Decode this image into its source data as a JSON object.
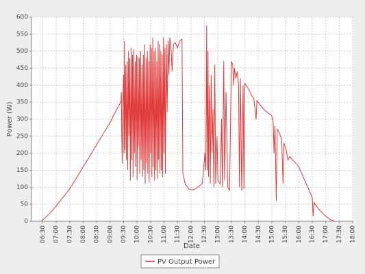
{
  "chart_data": {
    "type": "line",
    "xlabel": "Date",
    "ylabel": "Power (W)",
    "xlim": [
      "06:05",
      "18:00"
    ],
    "xticks": [
      "06:30",
      "07:00",
      "07:30",
      "08:00",
      "08:30",
      "09:00",
      "09:30",
      "10:00",
      "10:30",
      "11:00",
      "11:30",
      "12:00",
      "12:30",
      "13:00",
      "13:30",
      "14:00",
      "14:30",
      "15:00",
      "15:30",
      "16:00",
      "16:30",
      "17:00",
      "17:30",
      "18:00"
    ],
    "ylim": [
      0,
      600
    ],
    "yticks": [
      0,
      50,
      100,
      150,
      200,
      250,
      300,
      350,
      400,
      450,
      500,
      550,
      600
    ],
    "grid": true,
    "legend": "bottom",
    "series": [
      {
        "name": "PV Output Power",
        "color": "#e03a3a",
        "x": [
          "06:27",
          "06:45",
          "07:00",
          "07:15",
          "07:30",
          "07:45",
          "08:00",
          "08:15",
          "08:30",
          "08:45",
          "09:00",
          "09:15",
          "09:24",
          "09:25",
          "09:26",
          "09:27",
          "09:28",
          "09:30",
          "09:31",
          "09:32",
          "09:33",
          "09:35",
          "09:36",
          "09:38",
          "09:39",
          "09:41",
          "09:42",
          "09:44",
          "09:45",
          "09:47",
          "09:48",
          "09:50",
          "09:51",
          "09:53",
          "09:54",
          "09:56",
          "09:57",
          "09:59",
          "10:00",
          "10:02",
          "10:03",
          "10:05",
          "10:06",
          "10:08",
          "10:09",
          "10:11",
          "10:12",
          "10:14",
          "10:15",
          "10:17",
          "10:18",
          "10:20",
          "10:21",
          "10:23",
          "10:24",
          "10:26",
          "10:27",
          "10:29",
          "10:30",
          "10:32",
          "10:33",
          "10:35",
          "10:36",
          "10:38",
          "10:39",
          "10:41",
          "10:42",
          "10:44",
          "10:45",
          "10:47",
          "10:48",
          "10:50",
          "10:51",
          "10:53",
          "10:54",
          "10:56",
          "10:57",
          "10:59",
          "11:00",
          "11:02",
          "11:03",
          "11:05",
          "11:07",
          "11:09",
          "11:11",
          "11:13",
          "11:16",
          "11:18",
          "11:21",
          "11:25",
          "11:30",
          "11:35",
          "11:40",
          "11:42",
          "11:47",
          "11:55",
          "12:05",
          "12:15",
          "12:25",
          "12:28",
          "12:31",
          "12:33",
          "12:35",
          "12:36",
          "12:38",
          "12:39",
          "12:41",
          "12:43",
          "12:45",
          "12:47",
          "12:49",
          "12:51",
          "12:53",
          "12:55",
          "12:58",
          "13:00",
          "13:05",
          "13:08",
          "13:10",
          "13:13",
          "13:15",
          "13:18",
          "13:22",
          "13:26",
          "13:30",
          "13:33",
          "13:35",
          "13:37",
          "13:40",
          "13:43",
          "13:46",
          "13:48",
          "13:50",
          "13:53",
          "13:56",
          "13:58",
          "14:00",
          "14:05",
          "14:10",
          "14:15",
          "14:20",
          "14:25",
          "14:27",
          "14:35",
          "14:45",
          "14:55",
          "15:00",
          "15:03",
          "15:05",
          "15:07",
          "15:10",
          "15:12",
          "15:17",
          "15:22",
          "15:25",
          "15:27",
          "15:32",
          "15:36",
          "15:40",
          "15:50",
          "16:00",
          "16:10",
          "16:20",
          "16:30",
          "16:32",
          "16:34",
          "16:45",
          "17:00",
          "17:10",
          "17:20"
        ],
        "values": [
          0,
          22,
          45,
          70,
          95,
          127,
          160,
          192,
          225,
          258,
          290,
          330,
          350,
          380,
          250,
          170,
          330,
          430,
          200,
          530,
          210,
          460,
          180,
          470,
          150,
          500,
          250,
          480,
          120,
          510,
          180,
          490,
          130,
          505,
          200,
          470,
          160,
          490,
          120,
          485,
          220,
          480,
          140,
          500,
          180,
          460,
          130,
          490,
          150,
          520,
          110,
          480,
          170,
          500,
          140,
          470,
          115,
          520,
          200,
          510,
          130,
          540,
          160,
          500,
          120,
          510,
          150,
          470,
          125,
          530,
          180,
          520,
          140,
          500,
          150,
          490,
          130,
          540,
          200,
          510,
          140,
          520,
          320,
          530,
          430,
          540,
          500,
          440,
          520,
          525,
          510,
          530,
          535,
          140,
          110,
          95,
          92,
          100,
          110,
          150,
          200,
          150,
          575,
          150,
          500,
          130,
          400,
          110,
          430,
          200,
          330,
          100,
          460,
          110,
          250,
          120,
          110,
          300,
          100,
          470,
          120,
          380,
          100,
          90,
          470,
          460,
          400,
          450,
          420,
          440,
          400,
          100,
          420,
          90,
          400,
          95,
          405,
          395,
          385,
          370,
          360,
          300,
          355,
          340,
          325,
          315,
          310,
          290,
          200,
          280,
          60,
          270,
          260,
          240,
          110,
          230,
          210,
          180,
          190,
          175,
          160,
          130,
          100,
          70,
          15,
          55,
          35,
          15,
          5,
          0
        ]
      }
    ]
  }
}
